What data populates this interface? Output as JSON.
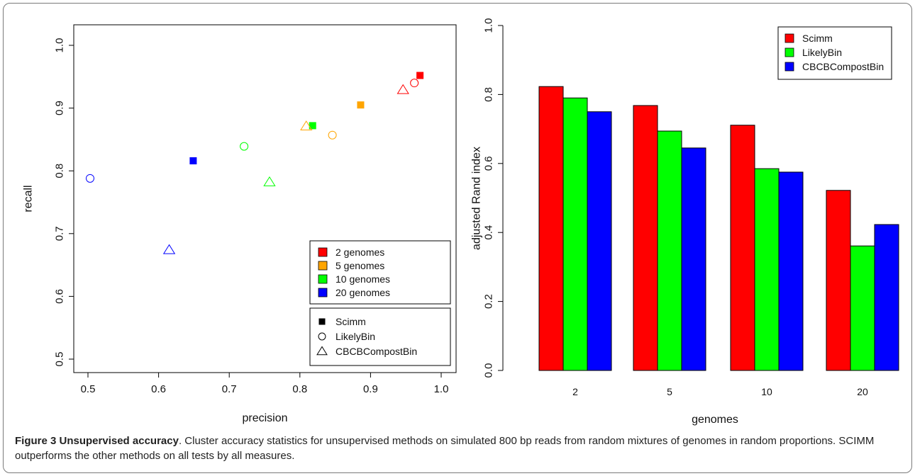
{
  "chart_data": [
    {
      "type": "scatter",
      "xlabel": "precision",
      "ylabel": "recall",
      "xlim": [
        0.5,
        1.0
      ],
      "ylim": [
        0.5,
        1.0
      ],
      "x_ticks": [
        "0.5",
        "0.6",
        "0.7",
        "0.8",
        "0.9",
        "1.0"
      ],
      "y_ticks": [
        "0.5",
        "0.6",
        "0.7",
        "0.8",
        "0.9",
        "1.0"
      ],
      "grid": false,
      "color_legend": {
        "placement": "bottom-right",
        "entries": [
          {
            "label": "2 genomes",
            "color": "#ff0000"
          },
          {
            "label": "5 genomes",
            "color": "#ffa500"
          },
          {
            "label": "10 genomes",
            "color": "#00ff00"
          },
          {
            "label": "20 genomes",
            "color": "#0000ff"
          }
        ]
      },
      "shape_legend": {
        "placement": "bottom-right",
        "entries": [
          {
            "label": "Scimm",
            "shape": "filled-square"
          },
          {
            "label": "LikelyBin",
            "shape": "open-circle"
          },
          {
            "label": "CBCBCompostBin",
            "shape": "open-triangle"
          }
        ]
      },
      "points": [
        {
          "method": "Scimm",
          "genomes": "2 genomes",
          "x": 0.97,
          "y": 0.952
        },
        {
          "method": "Scimm",
          "genomes": "5 genomes",
          "x": 0.886,
          "y": 0.905
        },
        {
          "method": "Scimm",
          "genomes": "10 genomes",
          "x": 0.818,
          "y": 0.872
        },
        {
          "method": "Scimm",
          "genomes": "20 genomes",
          "x": 0.649,
          "y": 0.816
        },
        {
          "method": "LikelyBin",
          "genomes": "2 genomes",
          "x": 0.962,
          "y": 0.94
        },
        {
          "method": "LikelyBin",
          "genomes": "5 genomes",
          "x": 0.846,
          "y": 0.857
        },
        {
          "method": "LikelyBin",
          "genomes": "10 genomes",
          "x": 0.721,
          "y": 0.839
        },
        {
          "method": "LikelyBin",
          "genomes": "20 genomes",
          "x": 0.503,
          "y": 0.788
        },
        {
          "method": "CBCBCompostBin",
          "genomes": "2 genomes",
          "x": 0.946,
          "y": 0.929
        },
        {
          "method": "CBCBCompostBin",
          "genomes": "5 genomes",
          "x": 0.809,
          "y": 0.871
        },
        {
          "method": "CBCBCompostBin",
          "genomes": "10 genomes",
          "x": 0.757,
          "y": 0.782
        },
        {
          "method": "CBCBCompostBin",
          "genomes": "20 genomes",
          "x": 0.615,
          "y": 0.674
        }
      ]
    },
    {
      "type": "bar",
      "xlabel": "genomes",
      "ylabel": "adjusted Rand index",
      "ylim": [
        0.0,
        1.0
      ],
      "y_ticks": [
        "0.0",
        "0.2",
        "0.4",
        "0.6",
        "0.8",
        "1.0"
      ],
      "categories": [
        "2",
        "5",
        "10",
        "20"
      ],
      "legend_placement": "top-right",
      "grid": false,
      "series": [
        {
          "name": "Scimm",
          "color": "#ff0000",
          "values": [
            0.823,
            0.768,
            0.711,
            0.522
          ]
        },
        {
          "name": "LikelyBin",
          "color": "#00ff00",
          "values": [
            0.79,
            0.694,
            0.585,
            0.361
          ]
        },
        {
          "name": "CBCBCompostBin",
          "color": "#0000ff",
          "values": [
            0.75,
            0.645,
            0.575,
            0.423
          ]
        }
      ]
    }
  ],
  "caption": {
    "label": "Figure 3 Unsupervised accuracy",
    "text": ". Cluster accuracy statistics for unsupervised methods on simulated 800 bp reads from random mixtures of genomes in random proportions. SCIMM outperforms the other methods on all tests by all measures."
  }
}
